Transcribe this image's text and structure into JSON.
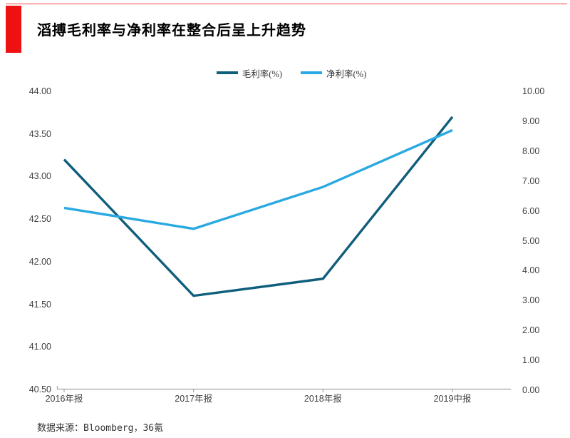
{
  "header": {
    "title": "滔搏毛利率与净利率在整合后呈上升趋势",
    "accent_color": "#ee1111"
  },
  "source": {
    "label": "数据来源：Bloomberg，36氪"
  },
  "chart_data": {
    "type": "line",
    "title": "滔搏毛利率与净利率在整合后呈上升趋势",
    "categories": [
      "2016年报",
      "2017年报",
      "2018年报",
      "2019中报"
    ],
    "series": [
      {
        "name": "毛利率(%)",
        "axis": "left",
        "color": "#0f5e7c",
        "values": [
          43.2,
          41.6,
          41.8,
          43.7
        ]
      },
      {
        "name": "净利率(%)",
        "axis": "right",
        "color": "#29a9e1",
        "values": [
          6.1,
          5.4,
          6.8,
          8.7
        ]
      }
    ],
    "left_axis": {
      "min": 40.5,
      "max": 44.0,
      "tick_step": 0.5,
      "ticks": [
        "44.00",
        "43.50",
        "43.00",
        "42.50",
        "42.00",
        "41.50",
        "41.00",
        "40.50"
      ]
    },
    "right_axis": {
      "min": 0.0,
      "max": 10.0,
      "tick_step": 1.0,
      "ticks": [
        "10.00",
        "9.00",
        "8.00",
        "7.00",
        "6.00",
        "5.00",
        "4.00",
        "3.00",
        "2.00",
        "1.00",
        "0.00"
      ]
    },
    "legend_position": "top-center",
    "grid": false,
    "axis_color": "#a6a6a6",
    "label_color": "#404040"
  }
}
